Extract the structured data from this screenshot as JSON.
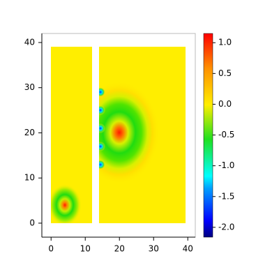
{
  "chart_data": {
    "type": "heatmap",
    "xlim": [
      -2.7,
      42.2
    ],
    "xticks": [
      0,
      10,
      20,
      30,
      40
    ],
    "ylim": [
      -3.1,
      42
    ],
    "yticks": [
      0,
      10,
      20,
      30,
      40
    ],
    "clim": [
      -2.16,
      1.15
    ],
    "cticks": [
      {
        "value": 1.0,
        "label": "1.0"
      },
      {
        "value": 0.5,
        "label": "0.5"
      },
      {
        "value": 0.0,
        "label": "0.0"
      },
      {
        "value": -0.5,
        "label": "-0.5"
      },
      {
        "value": -1.0,
        "label": "-1.0"
      },
      {
        "value": -1.5,
        "label": "-1.5"
      },
      {
        "value": -2.0,
        "label": "-2.0"
      }
    ]
  }
}
